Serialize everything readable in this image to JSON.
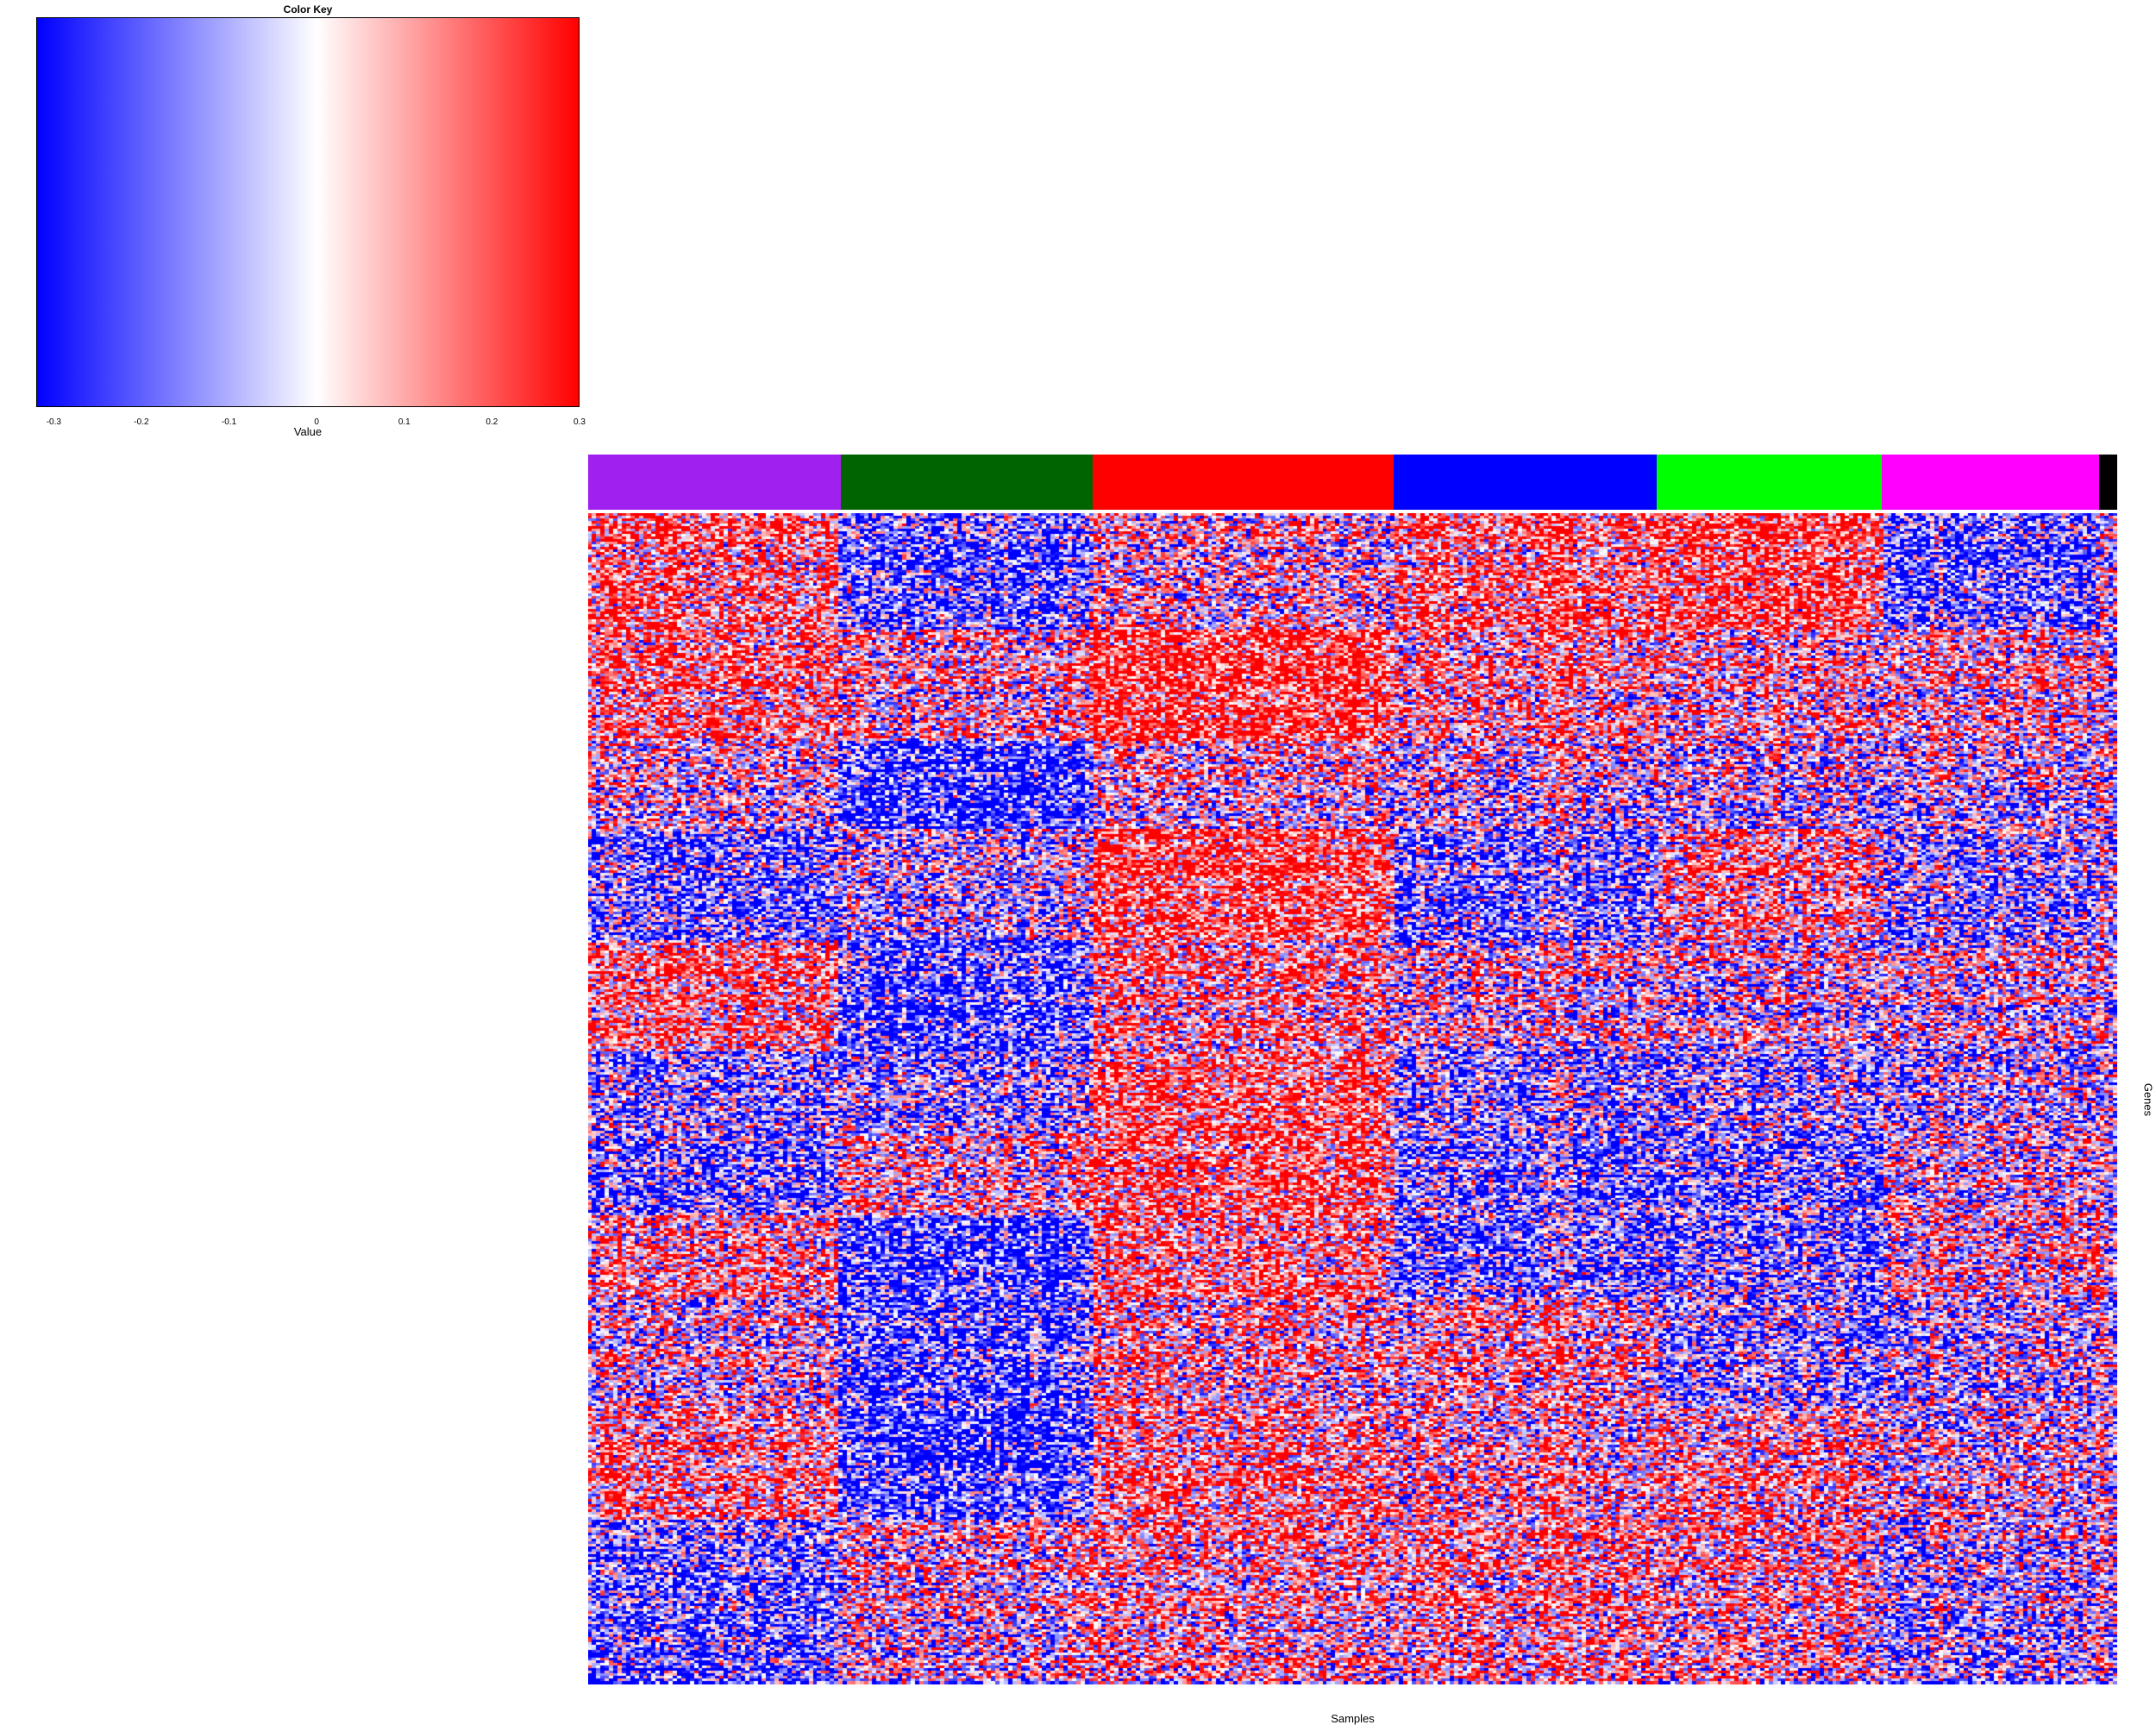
{
  "chart_data": {
    "type": "heatmap",
    "color_key": {
      "title": "Color Key",
      "xlabel": "Value",
      "range": [
        -0.32,
        0.3
      ],
      "colors": [
        "#0000ff",
        "#ffffff",
        "#ff0000"
      ],
      "ticks": [
        {
          "label": "-0.3",
          "value": -0.3
        },
        {
          "label": "-0.2",
          "value": -0.2
        },
        {
          "label": "-0.1",
          "value": -0.1
        },
        {
          "label": "0",
          "value": 0
        },
        {
          "label": "0.1",
          "value": 0.1
        },
        {
          "label": "0.2",
          "value": 0.2
        },
        {
          "label": "0.3",
          "value": 0.3
        }
      ]
    },
    "xlabel": "Samples",
    "ylabel": "Genes",
    "column_groups": [
      {
        "color": "#a020f0",
        "fraction": 0.165
      },
      {
        "color": "#006400",
        "fraction": 0.165
      },
      {
        "color": "#ff0000",
        "fraction": 0.197
      },
      {
        "color": "#0000ff",
        "fraction": 0.172
      },
      {
        "color": "#00ff00",
        "fraction": 0.147
      },
      {
        "color": "#ff00ff",
        "fraction": 0.142
      },
      {
        "color": "#000000",
        "fraction": 0.012
      }
    ],
    "row_blocks": [
      {
        "rows": 0.1,
        "bias": [
          0.15,
          -0.2,
          0.0,
          0.15,
          0.2,
          -0.2,
          0.0
        ]
      },
      {
        "rows": 0.095,
        "bias": [
          0.15,
          0.05,
          0.25,
          0.08,
          0.06,
          0.06,
          0.0
        ]
      },
      {
        "rows": 0.075,
        "bias": [
          0.0,
          -0.28,
          0.0,
          -0.05,
          -0.05,
          -0.05,
          0.0
        ]
      },
      {
        "rows": 0.095,
        "bias": [
          -0.15,
          -0.05,
          0.22,
          -0.15,
          0.12,
          -0.1,
          0.0
        ]
      },
      {
        "rows": 0.095,
        "bias": [
          0.15,
          -0.22,
          0.1,
          0.0,
          0.0,
          0.0,
          0.0
        ]
      },
      {
        "rows": 0.07,
        "bias": [
          -0.1,
          -0.1,
          0.18,
          -0.12,
          -0.1,
          -0.05,
          0.0
        ]
      },
      {
        "rows": 0.07,
        "bias": [
          -0.15,
          0.05,
          0.18,
          -0.15,
          -0.15,
          0.0,
          0.0
        ]
      },
      {
        "rows": 0.07,
        "bias": [
          0.1,
          -0.25,
          0.12,
          -0.18,
          -0.15,
          0.05,
          0.0
        ]
      },
      {
        "rows": 0.095,
        "bias": [
          0.0,
          -0.22,
          0.05,
          0.05,
          -0.12,
          -0.05,
          0.0
        ]
      },
      {
        "rows": 0.095,
        "bias": [
          0.12,
          -0.25,
          0.12,
          0.05,
          0.08,
          0.0,
          0.0
        ]
      },
      {
        "rows": 0.14,
        "bias": [
          -0.18,
          0.0,
          0.05,
          0.08,
          0.05,
          -0.08,
          0.0
        ]
      }
    ]
  }
}
